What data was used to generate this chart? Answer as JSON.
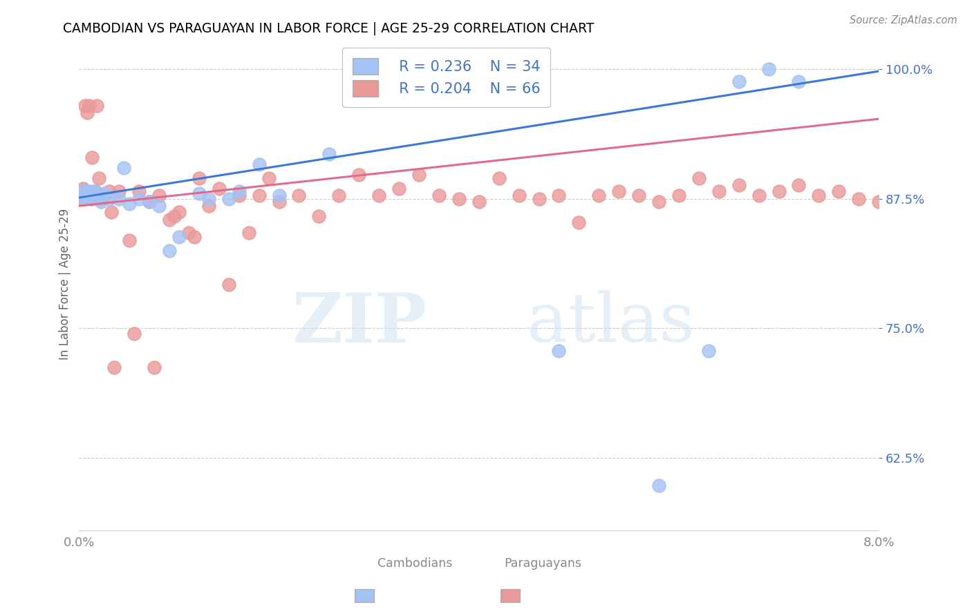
{
  "title": "CAMBODIAN VS PARAGUAYAN IN LABOR FORCE | AGE 25-29 CORRELATION CHART",
  "source": "Source: ZipAtlas.com",
  "ylabel": "In Labor Force | Age 25-29",
  "xlim": [
    0.0,
    0.08
  ],
  "ylim": [
    0.555,
    1.03
  ],
  "yticks": [
    0.625,
    0.75,
    0.875,
    1.0
  ],
  "ytick_labels": [
    "62.5%",
    "75.0%",
    "87.5%",
    "100.0%"
  ],
  "xticks": [
    0.0,
    0.01,
    0.02,
    0.03,
    0.04,
    0.05,
    0.06,
    0.07,
    0.08
  ],
  "xtick_labels": [
    "0.0%",
    "",
    "",
    "",
    "",
    "",
    "",
    "",
    "8.0%"
  ],
  "watermark_zip": "ZIP",
  "watermark_atlas": "atlas",
  "cambodian_color": "#a4c2f4",
  "paraguayan_color": "#ea9999",
  "cambodian_line_color": "#3c78d8",
  "paraguayan_line_color": "#e06c8a",
  "legend_r_cambodian": "R = 0.236",
  "legend_n_cambodian": "N = 34",
  "legend_r_paraguayan": "R = 0.204",
  "legend_n_paraguayan": "N = 66",
  "title_color": "#000000",
  "ytick_color": "#4472c4",
  "grid_color": "#cccccc",
  "background_color": "#ffffff",
  "cam_line_x0": 0.0,
  "cam_line_y0": 0.876,
  "cam_line_x1": 0.08,
  "cam_line_y1": 0.998,
  "par_line_x0": 0.0,
  "par_line_y0": 0.868,
  "par_line_x1": 0.08,
  "par_line_y1": 0.952,
  "cambodian_x": [
    0.0003,
    0.0005,
    0.0006,
    0.0008,
    0.001,
    0.0012,
    0.0014,
    0.0016,
    0.002,
    0.0022,
    0.0025,
    0.003,
    0.004,
    0.0045,
    0.005,
    0.006,
    0.007,
    0.008,
    0.009,
    0.01,
    0.012,
    0.013,
    0.015,
    0.016,
    0.018,
    0.02,
    0.025,
    0.028,
    0.048,
    0.058,
    0.063,
    0.066,
    0.069,
    0.072
  ],
  "cambodian_y": [
    0.878,
    0.883,
    0.875,
    0.88,
    0.882,
    0.875,
    0.88,
    0.882,
    0.878,
    0.872,
    0.88,
    0.875,
    0.875,
    0.905,
    0.87,
    0.875,
    0.872,
    0.868,
    0.825,
    0.838,
    0.88,
    0.875,
    0.875,
    0.882,
    0.908,
    0.878,
    0.918,
    0.975,
    0.728,
    0.598,
    0.728,
    0.988,
    1.0,
    0.988
  ],
  "paraguayan_x": [
    0.0002,
    0.0004,
    0.0006,
    0.0008,
    0.001,
    0.0012,
    0.0013,
    0.0015,
    0.0018,
    0.002,
    0.0022,
    0.0025,
    0.003,
    0.0032,
    0.004,
    0.005,
    0.006,
    0.007,
    0.008,
    0.009,
    0.01,
    0.011,
    0.012,
    0.013,
    0.014,
    0.015,
    0.016,
    0.017,
    0.018,
    0.019,
    0.02,
    0.022,
    0.024,
    0.026,
    0.028,
    0.03,
    0.032,
    0.034,
    0.036,
    0.038,
    0.04,
    0.042,
    0.044,
    0.046,
    0.048,
    0.05,
    0.052,
    0.054,
    0.056,
    0.058,
    0.06,
    0.062,
    0.064,
    0.066,
    0.068,
    0.07,
    0.072,
    0.074,
    0.076,
    0.078,
    0.08,
    0.0035,
    0.0055,
    0.0075,
    0.0095,
    0.0115
  ],
  "paraguayan_y": [
    0.875,
    0.885,
    0.965,
    0.958,
    0.965,
    0.875,
    0.915,
    0.882,
    0.965,
    0.895,
    0.875,
    0.878,
    0.882,
    0.862,
    0.882,
    0.835,
    0.882,
    0.872,
    0.878,
    0.855,
    0.862,
    0.842,
    0.895,
    0.868,
    0.885,
    0.792,
    0.878,
    0.842,
    0.878,
    0.895,
    0.872,
    0.878,
    0.858,
    0.878,
    0.898,
    0.878,
    0.885,
    0.898,
    0.878,
    0.875,
    0.872,
    0.895,
    0.878,
    0.875,
    0.878,
    0.852,
    0.878,
    0.882,
    0.878,
    0.872,
    0.878,
    0.895,
    0.882,
    0.888,
    0.878,
    0.882,
    0.888,
    0.878,
    0.882,
    0.875,
    0.872,
    0.712,
    0.745,
    0.712,
    0.858,
    0.838
  ]
}
